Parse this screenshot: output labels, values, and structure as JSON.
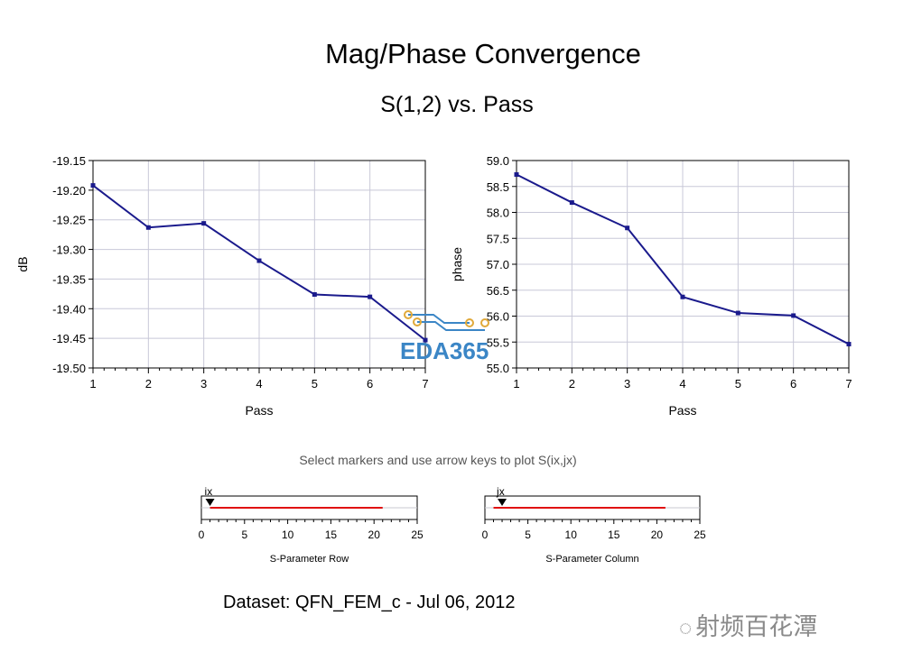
{
  "page": {
    "title": "Mag/Phase Convergence",
    "subtitle": "S(1,2) vs. Pass",
    "hint": "Select markers and use arrow keys to plot S(ix,jx)",
    "dataset": "Dataset: QFN_FEM_c - Jul 06, 2012",
    "watermark": "射频百花潭",
    "logo": "EDA365"
  },
  "colors": {
    "series": "#1a1a8c",
    "grid": "#c8c8d8",
    "slider_line": "#e01010"
  },
  "chart_data": [
    {
      "type": "line",
      "xlabel": "Pass",
      "ylabel": "dB",
      "x": [
        1,
        2,
        3,
        4,
        5,
        6,
        7
      ],
      "xlim": [
        1,
        7
      ],
      "ylim": [
        -19.5,
        -19.15
      ],
      "yticks": [
        "-19.15",
        "-19.20",
        "-19.25",
        "-19.30",
        "-19.35",
        "-19.40",
        "-19.45",
        "-19.50"
      ],
      "xticks": [
        "1",
        "2",
        "3",
        "4",
        "5",
        "6",
        "7"
      ],
      "grid": true,
      "series": [
        {
          "values": [
            -19.192,
            -19.263,
            -19.256,
            -19.319,
            -19.376,
            -19.38,
            -19.453
          ]
        }
      ]
    },
    {
      "type": "line",
      "xlabel": "Pass",
      "ylabel": "phase",
      "x": [
        1,
        2,
        3,
        4,
        5,
        6,
        7
      ],
      "xlim": [
        1,
        7
      ],
      "ylim": [
        55.0,
        59.0
      ],
      "yticks": [
        "59.0",
        "58.5",
        "58.0",
        "57.5",
        "57.0",
        "56.5",
        "56.0",
        "55.5",
        "55.0"
      ],
      "xticks": [
        "1",
        "2",
        "3",
        "4",
        "5",
        "6",
        "7"
      ],
      "grid": true,
      "series": [
        {
          "values": [
            58.73,
            58.19,
            57.7,
            56.37,
            56.06,
            56.01,
            55.46
          ]
        }
      ]
    }
  ],
  "sliders": [
    {
      "marker_label": "ix",
      "title": "S-Parameter Row",
      "ticks": [
        "0",
        "5",
        "10",
        "15",
        "20",
        "25"
      ],
      "marker_value": 1,
      "line_start": 1,
      "line_end": 21,
      "max": 25
    },
    {
      "marker_label": "jx",
      "title": "S-Parameter Column",
      "ticks": [
        "0",
        "5",
        "10",
        "15",
        "20",
        "25"
      ],
      "marker_value": 2,
      "line_start": 1,
      "line_end": 21,
      "max": 25
    }
  ]
}
